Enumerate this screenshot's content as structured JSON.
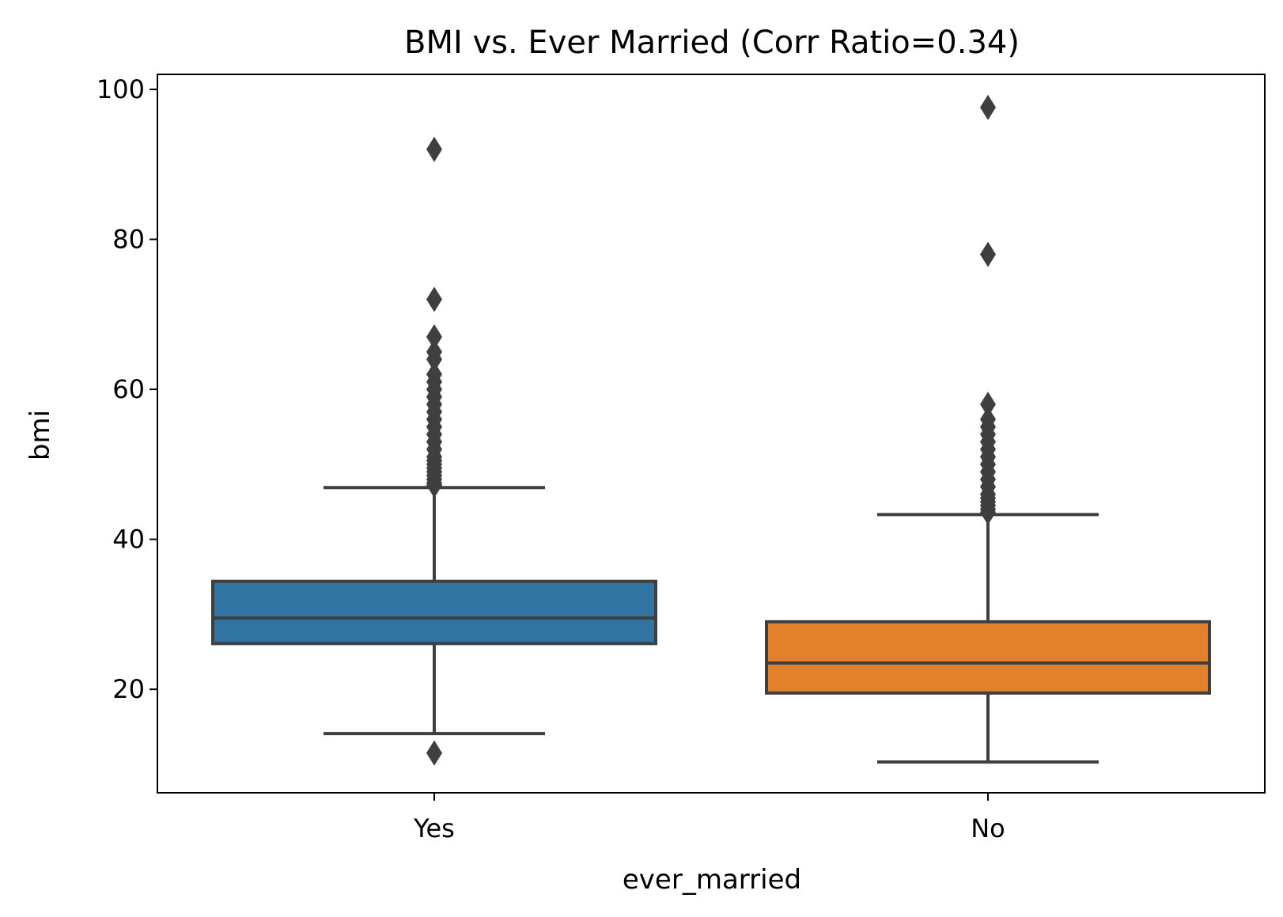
{
  "chart_data": {
    "type": "box",
    "title": "BMI vs. Ever Married (Corr Ratio=0.34)",
    "xlabel": "ever_married",
    "ylabel": "bmi",
    "ylim": [
      6.2,
      102
    ],
    "yticks": [
      20,
      40,
      60,
      80,
      100
    ],
    "grid": false,
    "categories": [
      "Yes",
      "No"
    ],
    "boxes": [
      {
        "category": "Yes",
        "color": "#3274a1",
        "whisker_low": 14.1,
        "q1": 26.1,
        "median": 29.5,
        "q3": 34.4,
        "whisker_high": 46.9,
        "outliers": [
          11.5,
          92.0,
          72.0,
          67.0,
          65.0,
          64.0,
          62.0,
          61.0,
          60.0,
          59.0,
          58.0,
          57.0,
          56.0,
          55.0,
          54.0,
          53.0,
          52.0,
          51.0,
          50.5,
          50.0,
          49.5,
          49.0,
          48.5,
          48.0,
          47.5,
          47.2
        ]
      },
      {
        "category": "No",
        "color": "#e1812c",
        "whisker_low": 10.3,
        "q1": 19.5,
        "median": 23.5,
        "q3": 29.0,
        "whisker_high": 43.3,
        "outliers": [
          97.6,
          78.0,
          58.0,
          56.0,
          55.0,
          54.0,
          53.0,
          52.0,
          51.0,
          50.0,
          49.0,
          48.0,
          47.0,
          46.0,
          45.5,
          45.0,
          44.5,
          44.0,
          43.6
        ]
      }
    ]
  }
}
